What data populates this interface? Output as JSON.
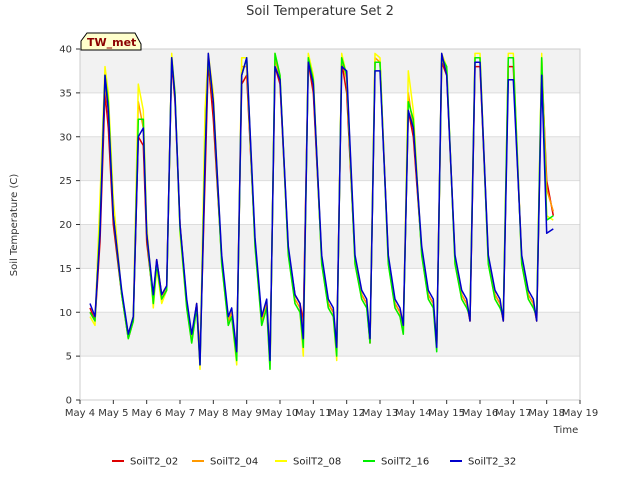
{
  "chart_data": {
    "type": "line",
    "title": "Soil Temperature Set 2",
    "xlabel": "Time",
    "ylabel": "Soil Temperature (C)",
    "badge": "TW_met",
    "ylim": [
      0,
      40
    ],
    "xlim": [
      4,
      19
    ],
    "yticks": [
      0,
      5,
      10,
      15,
      20,
      25,
      30,
      35,
      40
    ],
    "xticks": [
      {
        "value": 4,
        "label": "May 4"
      },
      {
        "value": 5,
        "label": "May 5"
      },
      {
        "value": 6,
        "label": "May 6"
      },
      {
        "value": 7,
        "label": "May 7"
      },
      {
        "value": 8,
        "label": "May 8"
      },
      {
        "value": 9,
        "label": "May 9"
      },
      {
        "value": 10,
        "label": "May 10"
      },
      {
        "value": 11,
        "label": "May 11"
      },
      {
        "value": 12,
        "label": "May 12"
      },
      {
        "value": 13,
        "label": "May 13"
      },
      {
        "value": 14,
        "label": "May 14"
      },
      {
        "value": 15,
        "label": "May 15"
      },
      {
        "value": 16,
        "label": "May 16"
      },
      {
        "value": 17,
        "label": "May 17"
      },
      {
        "value": 18,
        "label": "May 18"
      },
      {
        "value": 19,
        "label": "May 19"
      }
    ],
    "grid": true,
    "legend_position": "bottom",
    "series": [
      {
        "name": "SoilT2_02",
        "color": "#dd0000",
        "x": [
          4.3,
          4.45,
          4.6,
          4.75,
          4.85,
          5.0,
          5.25,
          5.45,
          5.6,
          5.75,
          5.9,
          6.0,
          6.2,
          6.3,
          6.45,
          6.6,
          6.75,
          6.85,
          7.0,
          7.2,
          7.35,
          7.5,
          7.6,
          7.75,
          7.85,
          8.0,
          8.25,
          8.45,
          8.55,
          8.7,
          8.85,
          9.0,
          9.25,
          9.45,
          9.6,
          9.7,
          9.85,
          10.0,
          10.25,
          10.45,
          10.6,
          10.7,
          10.85,
          11.0,
          11.25,
          11.45,
          11.6,
          11.7,
          11.85,
          12.0,
          12.25,
          12.45,
          12.6,
          12.7,
          12.85,
          13.0,
          13.25,
          13.45,
          13.6,
          13.7,
          13.85,
          14.0,
          14.25,
          14.45,
          14.6,
          14.7,
          14.85,
          15.0,
          15.25,
          15.45,
          15.6,
          15.7,
          15.85,
          16.0,
          16.25,
          16.45,
          16.6,
          16.7,
          16.85,
          17.0,
          17.25,
          17.45,
          17.6,
          17.7,
          17.85,
          18.0,
          18.2
        ],
        "y": [
          10.5,
          9.0,
          18.0,
          35.0,
          31.0,
          20.0,
          12.0,
          7.0,
          9.0,
          30.0,
          29.0,
          18.0,
          11.5,
          16.0,
          12.0,
          13.0,
          38.5,
          34.0,
          20.0,
          11.0,
          7.0,
          11.0,
          5.0,
          25.0,
          38.5,
          32.0,
          16.0,
          9.0,
          10.0,
          5.5,
          36.0,
          37.0,
          18.0,
          9.0,
          11.0,
          4.5,
          38.0,
          36.0,
          17.0,
          12.0,
          11.0,
          9.0,
          38.5,
          35.0,
          16.0,
          11.0,
          10.0,
          6.0,
          38.5,
          35.0,
          16.0,
          12.0,
          11.0,
          6.5,
          38.5,
          38.5,
          16.0,
          11.0,
          10.0,
          8.5,
          33.0,
          30.0,
          17.0,
          12.0,
          11.0,
          6.0,
          38.5,
          37.0,
          16.0,
          12.0,
          11.0,
          9.0,
          38.0,
          38.0,
          16.0,
          12.0,
          11.0,
          9.0,
          38.0,
          38.0,
          16.0,
          12.0,
          11.0,
          9.0,
          38.0,
          25.0,
          21.0
        ]
      },
      {
        "name": "SoilT2_04",
        "color": "#ff9900",
        "x": [
          4.3,
          4.45,
          4.6,
          4.75,
          4.85,
          5.0,
          5.25,
          5.45,
          5.6,
          5.75,
          5.9,
          6.0,
          6.2,
          6.3,
          6.45,
          6.6,
          6.75,
          6.85,
          7.0,
          7.2,
          7.35,
          7.5,
          7.6,
          7.75,
          7.85,
          8.0,
          8.25,
          8.45,
          8.55,
          8.7,
          8.85,
          9.0,
          9.25,
          9.45,
          9.6,
          9.7,
          9.85,
          10.0,
          10.25,
          10.45,
          10.6,
          10.7,
          10.85,
          11.0,
          11.25,
          11.45,
          11.6,
          11.7,
          11.85,
          12.0,
          12.25,
          12.45,
          12.6,
          12.7,
          12.85,
          13.0,
          13.25,
          13.45,
          13.6,
          13.7,
          13.85,
          14.0,
          14.25,
          14.45,
          14.6,
          14.7,
          14.85,
          15.0,
          15.25,
          15.45,
          15.6,
          15.7,
          15.85,
          16.0,
          16.25,
          16.45,
          16.6,
          16.7,
          16.85,
          17.0,
          17.25,
          17.45,
          17.6,
          17.7,
          17.85,
          18.0,
          18.2
        ],
        "y": [
          10.0,
          9.0,
          22.0,
          36.0,
          33.0,
          22.0,
          12.0,
          7.5,
          9.5,
          34.0,
          31.0,
          19.0,
          11.0,
          15.5,
          11.5,
          13.0,
          39.0,
          34.5,
          20.0,
          11.0,
          7.0,
          11.0,
          4.5,
          30.0,
          39.0,
          34.0,
          16.0,
          9.0,
          10.0,
          5.0,
          38.0,
          38.0,
          18.0,
          9.0,
          11.0,
          4.0,
          39.0,
          36.5,
          17.0,
          11.5,
          10.5,
          8.0,
          39.0,
          36.0,
          16.0,
          11.0,
          10.0,
          5.5,
          39.0,
          36.5,
          16.0,
          12.0,
          11.0,
          6.5,
          39.0,
          38.5,
          16.0,
          11.0,
          10.0,
          8.0,
          35.0,
          31.0,
          17.0,
          12.0,
          11.0,
          6.0,
          39.0,
          37.5,
          16.0,
          12.0,
          11.0,
          9.0,
          39.0,
          39.0,
          16.0,
          12.0,
          11.0,
          9.0,
          39.0,
          39.0,
          16.0,
          12.0,
          11.0,
          9.0,
          39.0,
          24.0,
          21.5
        ]
      },
      {
        "name": "SoilT2_08",
        "color": "#ffff00",
        "x": [
          4.3,
          4.45,
          4.6,
          4.75,
          4.85,
          5.0,
          5.25,
          5.45,
          5.6,
          5.75,
          5.9,
          6.0,
          6.2,
          6.3,
          6.45,
          6.6,
          6.75,
          6.85,
          7.0,
          7.2,
          7.35,
          7.5,
          7.6,
          7.75,
          7.85,
          8.0,
          8.25,
          8.45,
          8.55,
          8.7,
          8.85,
          9.0,
          9.25,
          9.45,
          9.6,
          9.7,
          9.85,
          10.0,
          10.25,
          10.45,
          10.6,
          10.7,
          10.85,
          11.0,
          11.25,
          11.45,
          11.6,
          11.7,
          11.85,
          12.0,
          12.25,
          12.45,
          12.6,
          12.7,
          12.85,
          13.0,
          13.25,
          13.45,
          13.6,
          13.7,
          13.85,
          14.0,
          14.25,
          14.45,
          14.6,
          14.7,
          14.85,
          15.0,
          15.25,
          15.45,
          15.6,
          15.7,
          15.85,
          16.0,
          16.25,
          16.45,
          16.6,
          16.7,
          16.85,
          17.0,
          17.25,
          17.45,
          17.6,
          17.7,
          17.85,
          18.0,
          18.2
        ],
        "y": [
          9.5,
          8.5,
          23.0,
          38.0,
          35.0,
          23.0,
          12.0,
          7.0,
          9.0,
          36.0,
          33.0,
          20.0,
          10.5,
          15.0,
          11.0,
          12.5,
          39.5,
          35.0,
          19.0,
          10.5,
          6.5,
          10.5,
          3.5,
          33.0,
          39.5,
          35.0,
          15.5,
          8.5,
          9.5,
          4.0,
          39.0,
          39.0,
          17.5,
          8.5,
          10.5,
          3.5,
          39.5,
          37.0,
          16.5,
          11.0,
          10.0,
          5.0,
          39.5,
          37.0,
          15.5,
          10.5,
          9.5,
          4.5,
          39.5,
          37.0,
          15.5,
          11.5,
          10.5,
          7.5,
          39.5,
          39.0,
          15.5,
          10.5,
          9.5,
          7.5,
          37.5,
          33.0,
          16.5,
          11.5,
          10.5,
          6.0,
          39.5,
          38.0,
          15.5,
          11.5,
          10.5,
          10.0,
          39.5,
          39.5,
          15.5,
          11.5,
          10.5,
          10.0,
          39.5,
          39.5,
          15.5,
          11.5,
          10.5,
          10.0,
          39.5,
          21.0,
          20.5
        ]
      },
      {
        "name": "SoilT2_16",
        "color": "#00ee00",
        "x": [
          4.3,
          4.45,
          4.6,
          4.75,
          4.85,
          5.0,
          5.25,
          5.45,
          5.6,
          5.75,
          5.9,
          6.0,
          6.2,
          6.3,
          6.45,
          6.6,
          6.75,
          6.85,
          7.0,
          7.2,
          7.35,
          7.5,
          7.6,
          7.75,
          7.85,
          8.0,
          8.25,
          8.45,
          8.55,
          8.7,
          8.85,
          9.0,
          9.25,
          9.45,
          9.6,
          9.7,
          9.85,
          10.0,
          10.25,
          10.45,
          10.6,
          10.7,
          10.85,
          11.0,
          11.25,
          11.45,
          11.6,
          11.7,
          11.85,
          12.0,
          12.25,
          12.45,
          12.6,
          12.7,
          12.85,
          13.0,
          13.25,
          13.45,
          13.6,
          13.7,
          13.85,
          14.0,
          14.25,
          14.45,
          14.6,
          14.7,
          14.85,
          15.0,
          15.25,
          15.45,
          15.6,
          15.7,
          15.85,
          16.0,
          16.25,
          16.45,
          16.6,
          16.7,
          16.85,
          17.0,
          17.25,
          17.45,
          17.6,
          17.7,
          17.85,
          18.0,
          18.2
        ],
        "y": [
          10.0,
          9.0,
          20.0,
          37.0,
          34.0,
          21.0,
          12.0,
          7.0,
          9.0,
          32.0,
          32.0,
          19.0,
          11.0,
          15.5,
          11.5,
          12.5,
          39.0,
          35.0,
          19.5,
          10.5,
          6.5,
          10.5,
          4.0,
          28.0,
          39.0,
          34.0,
          15.5,
          8.5,
          9.5,
          4.5,
          37.0,
          39.0,
          17.5,
          8.5,
          10.5,
          3.5,
          39.5,
          37.0,
          16.5,
          11.0,
          10.0,
          6.0,
          39.0,
          36.5,
          15.5,
          10.5,
          9.5,
          5.0,
          39.0,
          37.0,
          15.5,
          11.5,
          10.5,
          6.5,
          38.5,
          38.5,
          15.5,
          10.5,
          9.5,
          7.5,
          34.0,
          32.0,
          16.5,
          11.5,
          10.5,
          5.5,
          39.0,
          38.0,
          15.5,
          11.5,
          10.5,
          9.5,
          39.0,
          39.0,
          15.5,
          11.5,
          10.5,
          9.5,
          39.0,
          39.0,
          15.5,
          11.5,
          10.5,
          9.5,
          39.0,
          20.5,
          21.0
        ]
      },
      {
        "name": "SoilT2_32",
        "color": "#0000cc",
        "x": [
          4.3,
          4.45,
          4.6,
          4.75,
          4.85,
          5.0,
          5.25,
          5.45,
          5.6,
          5.75,
          5.9,
          6.0,
          6.2,
          6.3,
          6.45,
          6.6,
          6.75,
          6.85,
          7.0,
          7.2,
          7.35,
          7.5,
          7.6,
          7.75,
          7.85,
          8.0,
          8.25,
          8.45,
          8.55,
          8.7,
          8.85,
          9.0,
          9.25,
          9.45,
          9.6,
          9.7,
          9.85,
          10.0,
          10.25,
          10.45,
          10.6,
          10.7,
          10.85,
          11.0,
          11.25,
          11.45,
          11.6,
          11.7,
          11.85,
          12.0,
          12.25,
          12.45,
          12.6,
          12.7,
          12.85,
          13.0,
          13.25,
          13.45,
          13.6,
          13.7,
          13.85,
          14.0,
          14.25,
          14.45,
          14.6,
          14.7,
          14.85,
          15.0,
          15.25,
          15.45,
          15.6,
          15.7,
          15.85,
          16.0,
          16.25,
          16.45,
          16.6,
          16.7,
          16.85,
          17.0,
          17.25,
          17.45,
          17.6,
          17.7,
          17.85,
          18.0,
          18.2
        ],
        "y": [
          11.0,
          9.5,
          19.0,
          37.0,
          33.0,
          21.0,
          12.5,
          7.5,
          9.5,
          30.0,
          31.0,
          19.0,
          12.0,
          16.0,
          12.0,
          13.0,
          39.0,
          34.5,
          20.0,
          11.5,
          7.5,
          11.0,
          4.0,
          27.0,
          39.5,
          34.0,
          16.5,
          9.5,
          10.5,
          5.5,
          37.0,
          39.0,
          18.5,
          9.5,
          11.5,
          4.5,
          38.0,
          36.5,
          17.5,
          12.0,
          11.0,
          7.0,
          38.5,
          36.0,
          16.5,
          11.5,
          10.5,
          6.0,
          38.0,
          37.5,
          16.5,
          12.5,
          11.5,
          7.0,
          37.5,
          37.5,
          16.5,
          11.5,
          10.5,
          8.5,
          33.0,
          31.0,
          17.5,
          12.5,
          11.5,
          6.0,
          39.5,
          37.0,
          16.5,
          12.5,
          11.5,
          9.0,
          38.5,
          38.5,
          16.5,
          12.5,
          11.5,
          9.0,
          36.5,
          36.5,
          16.5,
          12.5,
          11.5,
          9.0,
          37.0,
          19.0,
          19.5
        ]
      }
    ]
  }
}
